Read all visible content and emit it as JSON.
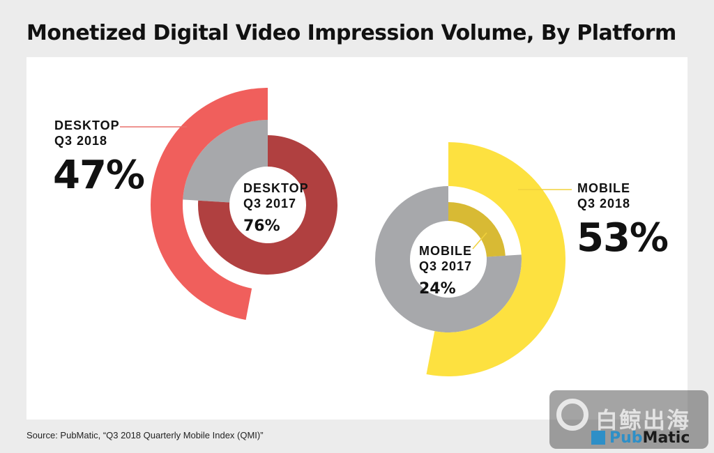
{
  "title": "Monetized Digital Video Impression Volume, By Platform",
  "source": "Source: PubMatic, “Q3 2018 Quarterly Mobile Index (QMI)”",
  "brand": {
    "pub": "Pub",
    "matic": "Matic"
  },
  "watermark": "白鲸出海",
  "colors": {
    "desktop_2018": "#f05f5c",
    "desktop_2017": "#b04040",
    "mobile_2018": "#fde140",
    "mobile_2017": "#d8ba34",
    "gray_outer": "#a7a8ab",
    "gray_inner": "#a7a8ab",
    "leader_desktop": "#e8706b",
    "leader_mobile": "#f2d23c"
  },
  "labels": {
    "desktop_2018": {
      "line1": "DESKTOP",
      "line2": "Q3 2018",
      "value": "47%"
    },
    "desktop_2017": {
      "line1": "DESKTOP",
      "line2": "Q3 2017",
      "value": "76%"
    },
    "mobile_2018": {
      "line1": "MOBILE",
      "line2": "Q3 2018",
      "value": "53%"
    },
    "mobile_2017": {
      "line1": "MOBILE",
      "line2": "Q3 2017",
      "value": "24%"
    }
  },
  "chart_data": [
    {
      "type": "pie",
      "title": "Q3 2018",
      "categories": [
        "DESKTOP",
        "MOBILE"
      ],
      "values": [
        47,
        53
      ],
      "unit": "%"
    },
    {
      "type": "pie",
      "title": "Q3 2017",
      "categories": [
        "DESKTOP",
        "MOBILE"
      ],
      "values": [
        76,
        24
      ],
      "unit": "%"
    }
  ]
}
